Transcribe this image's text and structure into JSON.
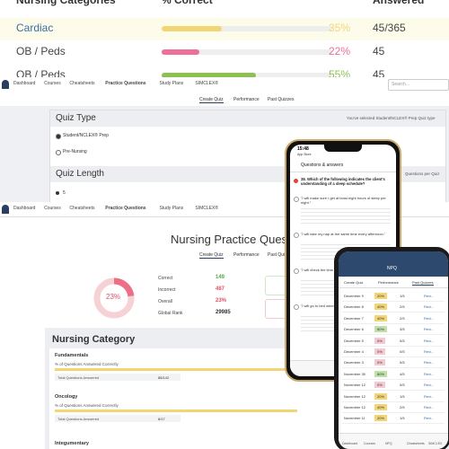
{
  "top_table": {
    "headers": [
      "Nursing Categories",
      "% Correct",
      "Answered"
    ],
    "rows": [
      {
        "category": "Cardiac",
        "pct": 35,
        "pct_label": "35%",
        "answered": "45/365",
        "color": "#f2d675"
      },
      {
        "category": "OB / Peds",
        "pct": 22,
        "pct_label": "22%",
        "answered": "45",
        "color": "#ef6f9a"
      },
      {
        "category": "OB / Peds",
        "pct": 55,
        "pct_label": "55%",
        "answered": "45",
        "color": "#8cc152"
      }
    ]
  },
  "nav": {
    "items": [
      "Dashboard",
      "Courses",
      "Cheatsheets",
      "Practice Questions",
      "Study Plans",
      "SIMCLEX®"
    ],
    "search": "Search..."
  },
  "tabs": [
    "Create Quiz",
    "Performance",
    "Past Quizzes"
  ],
  "quiz_type": {
    "title": "Quiz Type",
    "note": "You've selected Student/NCLEX® Prep Quiz type",
    "options": [
      "Student/NCLEX® Prep",
      "Pre-Nursing"
    ]
  },
  "quiz_length": {
    "title": "Quiz Length",
    "value": "5",
    "note": "Questions per Quiz"
  },
  "performance": {
    "title": "Nursing Practice Questions",
    "donut": {
      "value": 23,
      "label": "23%"
    },
    "stats": [
      {
        "label": "Correct",
        "value": "149",
        "color": "#5aa84a"
      },
      {
        "label": "Incorrect",
        "value": "487",
        "color": "#e0506a"
      },
      {
        "label": "Overall",
        "value": "23%",
        "color": "#e0506a"
      },
      {
        "label": "Global Rank",
        "value": "29985",
        "color": "#333"
      }
    ]
  },
  "nursing_category": {
    "title": "Nursing Category",
    "groups": [
      {
        "name": "Fundamentals",
        "pct_label": "% of Questions Answered Correctly",
        "total_label": "Total Questions Answered",
        "total": "88/142"
      },
      {
        "name": "Oncology",
        "pct_label": "% of Questions Answered Correctly",
        "total_label": "Total Questions Answered",
        "total": "8/17"
      },
      {
        "name": "Integumentary"
      }
    ]
  },
  "phone_qa": {
    "time": "15:48",
    "store": "App Store",
    "title": "Questions & answers",
    "question": "38. Which of the following indicates the client's understanding of a sleep schedule?",
    "answers": [
      "\"I will make sure I get at least eight hours of sleep per night.\"",
      "\"I will take my nap at the same time every afternoon.\"",
      "\"I will check the time before going to sleep.\"",
      "\"I will go to bed when I feel tired.\""
    ]
  },
  "phone_npq": {
    "title": "NPQ",
    "tabs": [
      "Create Quiz",
      "Performance",
      "Past Quizzes"
    ],
    "review": "Revi...",
    "rows": [
      [
        "December 9",
        "20%",
        "1/5"
      ],
      [
        "December 8",
        "40%",
        "2/5"
      ],
      [
        "December 7",
        "40%",
        "2/5"
      ],
      [
        "December 6",
        "60%",
        "3/5"
      ],
      [
        "December 5",
        "0%",
        "0/5"
      ],
      [
        "December 4",
        "0%",
        "0/5"
      ],
      [
        "December 3",
        "0%",
        "0/5"
      ],
      [
        "November 30",
        "80%",
        "4/5"
      ],
      [
        "November 12",
        "0%",
        "0/5"
      ],
      [
        "November 12",
        "20%",
        "1/5"
      ],
      [
        "November 12",
        "40%",
        "2/5"
      ],
      [
        "November 11",
        "20%",
        "1/5"
      ]
    ],
    "tab_bar": [
      "Dashboard",
      "Courses",
      "NPQ",
      "Cheatsheets",
      "SIMCLEX"
    ]
  }
}
